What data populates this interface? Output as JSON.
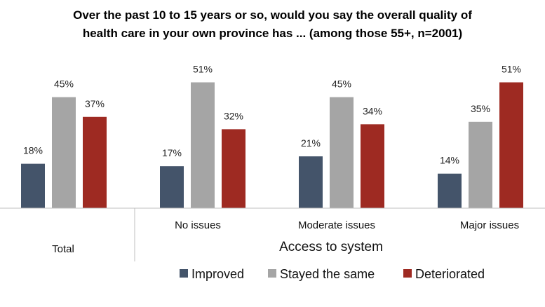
{
  "chart_data": {
    "type": "bar",
    "title_lines": [
      "Over the past 10 to 15 years or so, would you say the overall quality of",
      "health care in your own province has ... (among those 55+, n=2001)"
    ],
    "categories": [
      "Total",
      "No issues",
      "Moderate issues",
      "Major issues"
    ],
    "xlabel": "Access to system",
    "ylabel": "",
    "ylim": [
      0,
      60
    ],
    "grid": false,
    "legend_position": "bottom",
    "series": [
      {
        "name": "Improved",
        "color": "#44546a",
        "values": [
          18,
          17,
          21,
          14
        ],
        "labels": [
          "18%",
          "17%",
          "21%",
          "14%"
        ]
      },
      {
        "name": "Stayed the same",
        "color": "#a5a5a5",
        "values": [
          45,
          51,
          45,
          35
        ],
        "labels": [
          "45%",
          "51%",
          "45%",
          "35%"
        ]
      },
      {
        "name": "Deteriorated",
        "color": "#9e2a22",
        "values": [
          37,
          32,
          34,
          51
        ],
        "labels": [
          "37%",
          "32%",
          "34%",
          "51%"
        ]
      }
    ]
  }
}
